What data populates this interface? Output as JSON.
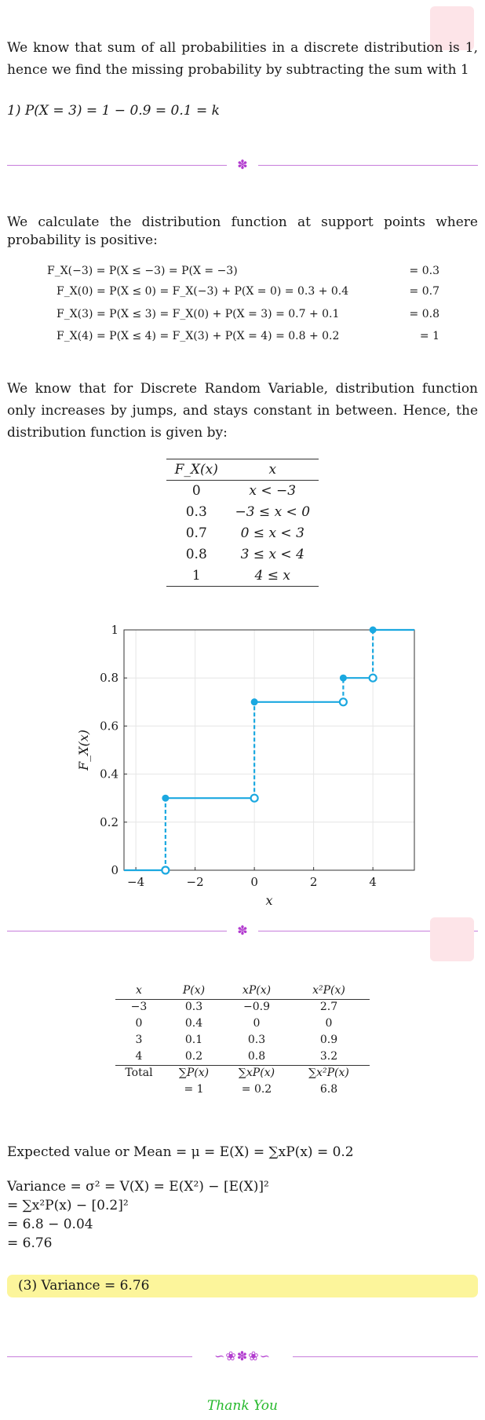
{
  "intro": {
    "text": "We know that sum of all probabilities in a discrete distribution is 1, hence we find the missing probability by subtracting the sum with 1",
    "step1": "1) P(X = 3) = 1 − 0.9 = 0.1 = k"
  },
  "distribution_intro": "We calculate the distribution function at support points where probability is positive:",
  "distribution_steps": [
    {
      "lhs": "F_X(−3) = P(X ≤ −3) = P(X = −3)",
      "rhs": "= 0.3"
    },
    {
      "lhs": "F_X(0) = P(X ≤ 0) = F_X(−3) + P(X = 0) = 0.3 + 0.4",
      "rhs": "= 0.7"
    },
    {
      "lhs": "F_X(3) = P(X ≤ 3) = F_X(0) + P(X = 3) = 0.7 + 0.1",
      "rhs": "= 0.8"
    },
    {
      "lhs": "F_X(4) = P(X ≤ 4) = F_X(3) + P(X = 4) = 0.8 + 0.2",
      "rhs": "= 1"
    }
  ],
  "jumps_text": "We know that for Discrete Random Variable, distribution function only increases by jumps, and stays constant in between. Hence, the distribution function is given by:",
  "cdf_table": {
    "headers": [
      "F_X(x)",
      "x"
    ],
    "rows": [
      [
        "0",
        "x < −3"
      ],
      [
        "0.3",
        "−3 ≤ x < 0"
      ],
      [
        "0.7",
        "0 ≤ x < 3"
      ],
      [
        "0.8",
        "3 ≤ x < 4"
      ],
      [
        "1",
        "4 ≤ x"
      ]
    ]
  },
  "chart_data": {
    "type": "line",
    "title": "",
    "xlabel": "x",
    "ylabel": "F_X(x)",
    "xlim": [
      -4.4,
      5.4
    ],
    "ylim": [
      0,
      1
    ],
    "xticks": [
      -4,
      -2,
      0,
      2,
      4
    ],
    "yticks": [
      0,
      0.2,
      0.4,
      0.6,
      0.8,
      1
    ],
    "ytick_labels": [
      "0",
      "0.2",
      "0.4",
      "0.6",
      "0.8",
      "1"
    ],
    "xtick_labels": [
      "−4",
      "−2",
      "0",
      "2",
      "4"
    ],
    "grid": true,
    "line_color": "#1ba8e0",
    "steps": [
      {
        "x_start": -4.4,
        "x_end": -3,
        "y": 0
      },
      {
        "x_start": -3,
        "x_end": 0,
        "y": 0.3
      },
      {
        "x_start": 0,
        "x_end": 3,
        "y": 0.7
      },
      {
        "x_start": 3,
        "x_end": 4,
        "y": 0.8
      },
      {
        "x_start": 4,
        "x_end": 5.4,
        "y": 1
      }
    ],
    "jumps": [
      {
        "x": -3,
        "from": 0,
        "to": 0.3
      },
      {
        "x": 0,
        "from": 0.3,
        "to": 0.7
      },
      {
        "x": 3,
        "from": 0.7,
        "to": 0.8
      },
      {
        "x": 4,
        "from": 0.8,
        "to": 1
      }
    ]
  },
  "stats_table": {
    "headers": [
      "x",
      "P(x)",
      "xP(x)",
      "x²P(x)"
    ],
    "rows": [
      [
        "−3",
        "0.3",
        "−0.9",
        "2.7"
      ],
      [
        "0",
        "0.4",
        "0",
        "0"
      ],
      [
        "3",
        "0.1",
        "0.3",
        "0.9"
      ],
      [
        "4",
        "0.2",
        "0.8",
        "3.2"
      ]
    ],
    "total_label": "Total",
    "total_row1": [
      "∑P(x)",
      "∑xP(x)",
      "∑x²P(x)"
    ],
    "total_row2": [
      "= 1",
      "= 0.2",
      "6.8"
    ]
  },
  "mean_text": "Expected value or Mean = μ = E(X) = ∑xP(x) = 0.2",
  "variance_lines": [
    "Variance = σ² = V(X) = E(X²) − [E(X)]²",
    "= ∑x²P(x) − [0.2]²",
    "= 6.8 − 0.04",
    "= 6.76"
  ],
  "answer": "(3) Variance = 6.76",
  "thanks": "Thank You",
  "colors": {
    "divider": "#c77ddb",
    "ornament": "#b23ccf",
    "answer_bg": "#fcf59b",
    "thanks": "#25b82b",
    "plot": "#1ba8e0"
  }
}
